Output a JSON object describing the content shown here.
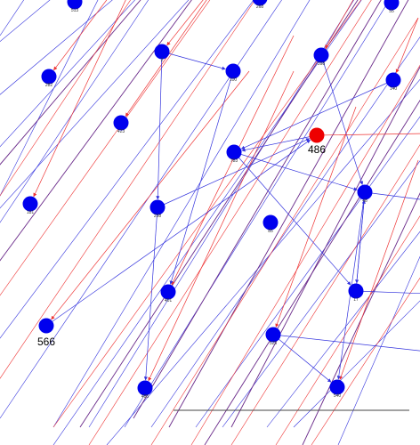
{
  "graph": {
    "colors": {
      "node": "#0000ee",
      "node_selected": "#ee0000",
      "edge_blue": "#3333dd",
      "edge_purple": "#6a2a8a",
      "edge_red": "#ee3333",
      "background": "#ffffff"
    },
    "nodes": [
      {
        "id": "n513",
        "label": "513"
      },
      {
        "id": "n268",
        "label": "268"
      },
      {
        "id": "n55",
        "label": "55"
      },
      {
        "id": "n282",
        "label": "282"
      },
      {
        "id": "n2x",
        "label": "2"
      },
      {
        "id": "n100",
        "label": "100"
      },
      {
        "id": "n398",
        "label": "398"
      },
      {
        "id": "n140",
        "label": "140"
      },
      {
        "id": "n423",
        "label": "423"
      },
      {
        "id": "n486",
        "label": "486",
        "selected": true
      },
      {
        "id": "n783",
        "label": "783"
      },
      {
        "id": "n181",
        "label": "181"
      },
      {
        "id": "n238",
        "label": "238"
      },
      {
        "id": "n85",
        "label": "85"
      },
      {
        "id": "n48",
        "label": "48"
      },
      {
        "id": "n401",
        "label": "401"
      },
      {
        "id": "n17",
        "label": "17"
      },
      {
        "id": "n566",
        "label": "566",
        "emphasized": true
      },
      {
        "id": "n525",
        "label": "525"
      },
      {
        "id": "n485",
        "label": "485"
      },
      {
        "id": "n540",
        "label": "540"
      }
    ]
  }
}
